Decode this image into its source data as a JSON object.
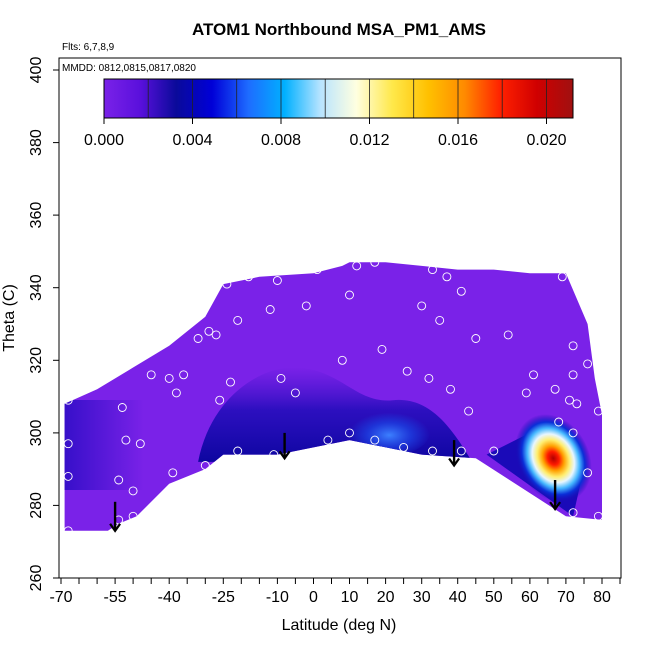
{
  "chart_data": {
    "type": "heatmap",
    "title": "ATOM1 Northbound MSA_PM1_AMS",
    "flights_note": "Flts: 6,7,8,9",
    "dates_note": "MMDD: 0812,0815,0817,0820",
    "xlabel": "Latitude (deg N)",
    "ylabel": "Theta (C)",
    "xlim": [
      -70,
      85
    ],
    "ylim": [
      260,
      400
    ],
    "x_ticks": [
      -70,
      -55,
      -40,
      -25,
      -10,
      0,
      10,
      20,
      30,
      40,
      50,
      60,
      70,
      80
    ],
    "x_tick_labels": [
      "-70",
      "-55",
      "-40",
      "-25",
      "-10",
      "0",
      "10",
      "20",
      "30",
      "40",
      "50",
      "60",
      "70",
      "80"
    ],
    "x_minor_ticks": [
      -65,
      -60,
      -50,
      -45,
      -35,
      -30,
      -20,
      -15,
      -5,
      5,
      15,
      25,
      35,
      45,
      55,
      65,
      75,
      85
    ],
    "y_ticks": [
      260,
      280,
      300,
      320,
      340,
      360,
      380,
      400
    ],
    "y_tick_labels": [
      "260",
      "280",
      "300",
      "320",
      "340",
      "360",
      "380",
      "400"
    ],
    "colorbar": {
      "min": 0.0,
      "max": 0.0212,
      "tick_values": [
        0.0,
        0.004,
        0.008,
        0.012,
        0.016,
        0.02
      ],
      "tick_labels": [
        "0.000",
        "0.004",
        "0.008",
        "0.012",
        "0.016",
        "0.020"
      ],
      "divisions": [
        0.002,
        0.004,
        0.006,
        0.008,
        0.01,
        0.012,
        0.014,
        0.016,
        0.018,
        0.02
      ],
      "colors": [
        "#7a22e8",
        "#5a10dc",
        "#0a0a9a",
        "#0000d8",
        "#1e6cff",
        "#00b0ff",
        "#b8e4ff",
        "#ffffe0",
        "#ffe84a",
        "#ffc000",
        "#ff8a00",
        "#ff2000",
        "#d00000",
        "#a01010"
      ]
    },
    "field_envelope": {
      "bottom": [
        [
          -69,
          273
        ],
        [
          -57,
          273
        ],
        [
          -54,
          275
        ],
        [
          -49,
          277
        ],
        [
          -40,
          286
        ],
        [
          -30,
          290
        ],
        [
          -25,
          294
        ],
        [
          -10,
          294
        ],
        [
          10,
          298
        ],
        [
          30,
          294
        ],
        [
          45,
          293
        ],
        [
          70,
          277
        ],
        [
          80,
          276
        ]
      ],
      "top": [
        [
          -69,
          308
        ],
        [
          -60,
          312
        ],
        [
          -50,
          318
        ],
        [
          -40,
          324
        ],
        [
          -30,
          332
        ],
        [
          -25,
          341
        ],
        [
          -15,
          343
        ],
        [
          0,
          344
        ],
        [
          8,
          346
        ],
        [
          10,
          347
        ],
        [
          20,
          347
        ],
        [
          30,
          346
        ],
        [
          40,
          345
        ],
        [
          50,
          345
        ],
        [
          60,
          344
        ],
        [
          70,
          344
        ],
        [
          76,
          330
        ],
        [
          78,
          315
        ],
        [
          80,
          305
        ]
      ]
    },
    "features": [
      {
        "name": "dark band over south-central latitudes",
        "x": [
          -25,
          15
        ],
        "y": [
          295,
          318
        ],
        "value": 0.003
      },
      {
        "name": "blue patch near 20N",
        "x": [
          12,
          30
        ],
        "y": [
          296,
          304
        ],
        "value": 0.0055
      },
      {
        "name": "high concentration plume",
        "x": [
          60,
          72
        ],
        "y": [
          283,
          300
        ],
        "peak_lat": 66.5,
        "peak_theta": 293,
        "peak_value": 0.019
      }
    ],
    "sample_points": [
      [
        -68,
        309
      ],
      [
        -68,
        297
      ],
      [
        -68,
        288
      ],
      [
        -68,
        273
      ],
      [
        -53,
        307
      ],
      [
        -52,
        298
      ],
      [
        -48,
        297
      ],
      [
        -54,
        287
      ],
      [
        -50,
        284
      ],
      [
        -54,
        276
      ],
      [
        -50,
        277
      ],
      [
        -45,
        316
      ],
      [
        -40,
        315
      ],
      [
        -38,
        311
      ],
      [
        -36,
        316
      ],
      [
        -32,
        326
      ],
      [
        -29,
        328
      ],
      [
        -27,
        327
      ],
      [
        -24,
        341
      ],
      [
        -21,
        331
      ],
      [
        -18,
        343
      ],
      [
        -23,
        314
      ],
      [
        -26,
        309
      ],
      [
        -30,
        291
      ],
      [
        -39,
        289
      ],
      [
        -12,
        334
      ],
      [
        -10,
        342
      ],
      [
        -2,
        335
      ],
      [
        1,
        345
      ],
      [
        8,
        320
      ],
      [
        10,
        338
      ],
      [
        12,
        346
      ],
      [
        17,
        347
      ],
      [
        19,
        323
      ],
      [
        24,
        348
      ],
      [
        33,
        345
      ],
      [
        37,
        343
      ],
      [
        30,
        335
      ],
      [
        35,
        331
      ],
      [
        41,
        339
      ],
      [
        45,
        326
      ],
      [
        54,
        327
      ],
      [
        61,
        316
      ],
      [
        59,
        311
      ],
      [
        69,
        343
      ],
      [
        72,
        324
      ],
      [
        76,
        319
      ],
      [
        72,
        316
      ],
      [
        67,
        312
      ],
      [
        71,
        309
      ],
      [
        73,
        308
      ],
      [
        79,
        306
      ],
      [
        68,
        303
      ],
      [
        72,
        300
      ],
      [
        76,
        289
      ],
      [
        72,
        278
      ],
      [
        79,
        277
      ],
      [
        -5,
        311
      ],
      [
        -9,
        315
      ],
      [
        4,
        298
      ],
      [
        10,
        300
      ],
      [
        17,
        298
      ],
      [
        25,
        296
      ],
      [
        33,
        295
      ],
      [
        41,
        295
      ],
      [
        26,
        317
      ],
      [
        32,
        315
      ],
      [
        38,
        312
      ],
      [
        43,
        306
      ],
      [
        50,
        295
      ],
      [
        -21,
        295
      ],
      [
        -11,
        294
      ]
    ],
    "arrows": [
      {
        "lat": -55,
        "theta_start": 281,
        "theta_end": 273
      },
      {
        "lat": -8,
        "theta_start": 300,
        "theta_end": 293
      },
      {
        "lat": 39,
        "theta_start": 298,
        "theta_end": 291
      },
      {
        "lat": 67,
        "theta_start": 287,
        "theta_end": 279
      }
    ]
  }
}
